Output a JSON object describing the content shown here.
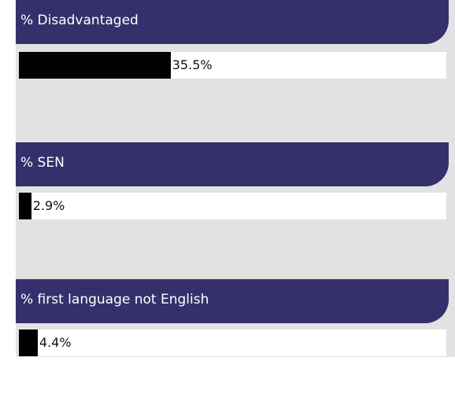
{
  "chart_data": {
    "type": "bar",
    "orientation": "horizontal",
    "xlim": [
      0,
      100
    ],
    "bar_color": "#000000",
    "header_color": "#35306b",
    "panels": [
      {
        "title": "% Disadvantaged",
        "value": 35.5,
        "value_label": "35.5%"
      },
      {
        "title": "% SEN",
        "value": 2.9,
        "value_label": "2.9%"
      },
      {
        "title": "% first language not English",
        "value": 4.4,
        "value_label": "4.4%"
      }
    ]
  }
}
